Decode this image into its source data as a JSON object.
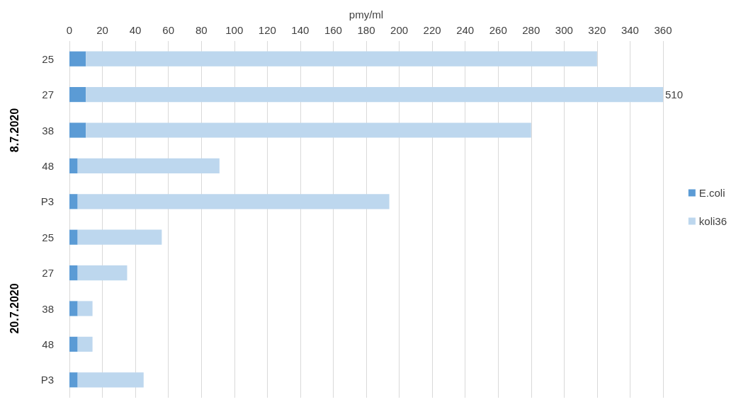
{
  "chart_data": {
    "type": "bar",
    "orientation": "horizontal",
    "stacked": true,
    "xlabel": "pmy/ml",
    "categories": [
      "25",
      "27",
      "38",
      "48",
      "P3",
      "25",
      "27",
      "38",
      "48",
      "P3"
    ],
    "series": [
      {
        "name": "E.coli",
        "color": "#5b9bd5",
        "values": [
          10,
          10,
          10,
          5,
          5,
          5,
          5,
          5,
          5,
          5
        ]
      },
      {
        "name": "koli36",
        "color": "#bdd7ee",
        "values": [
          310,
          350,
          270,
          86,
          189,
          51,
          30,
          9,
          9,
          40
        ]
      }
    ],
    "xlim": [
      0,
      360
    ],
    "xticks": [
      0,
      20,
      40,
      60,
      80,
      100,
      120,
      140,
      160,
      180,
      200,
      220,
      240,
      260,
      280,
      300,
      320,
      340,
      360
    ],
    "grid": "x",
    "legend": "right",
    "annotations": [
      "8.7.2020",
      "20.7.2020",
      {
        "text": "510",
        "x": 360,
        "y": "27"
      }
    ]
  }
}
